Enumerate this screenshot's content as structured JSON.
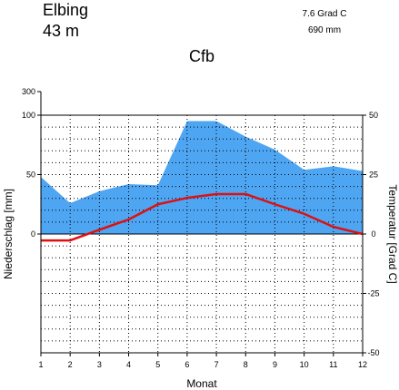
{
  "header": {
    "station": "Elbing",
    "elevation": "43  m",
    "mean_temp": "7.6 Grad C",
    "annual_precip": "690 mm",
    "climate_class": "Cfb"
  },
  "chart_data": {
    "type": "area",
    "title": "",
    "xlabel": "Monat",
    "ylabel_left": "Niederschlag [mm]",
    "ylabel_right": "Temperatur [Grad C]",
    "x": [
      1,
      2,
      3,
      4,
      5,
      6,
      7,
      8,
      9,
      10,
      11,
      12
    ],
    "x_tick_labels": [
      "1",
      "2",
      "3",
      "4",
      "5",
      "6",
      "7",
      "8",
      "9",
      "10",
      "11",
      "12"
    ],
    "xlim": [
      1,
      12
    ],
    "left_axis": {
      "ylim": [
        -100,
        100
      ],
      "tick_values": [
        100,
        50,
        0
      ],
      "tick_labels": [
        "100",
        "50",
        "0"
      ],
      "compressed_label": "300",
      "colors": {
        "fill": "#4ea5f2"
      }
    },
    "right_axis": {
      "ylim": [
        -50,
        50
      ],
      "tick_values": [
        50,
        25,
        0,
        -25,
        -50
      ],
      "tick_labels": [
        "50",
        "25",
        "0",
        "-25",
        "-50"
      ]
    },
    "series": [
      {
        "kind": "precipitation",
        "values": [
          48,
          26,
          36,
          42,
          41,
          95,
          95,
          82,
          71,
          54,
          57,
          53
        ],
        "color": "#4ea5f2"
      },
      {
        "kind": "temperature",
        "values": [
          -2.7,
          -2.7,
          1.8,
          6.1,
          12.5,
          15.2,
          16.8,
          16.8,
          12.5,
          8.5,
          3.0,
          0.0
        ],
        "color": "#dd1111"
      }
    ],
    "grid": true
  }
}
